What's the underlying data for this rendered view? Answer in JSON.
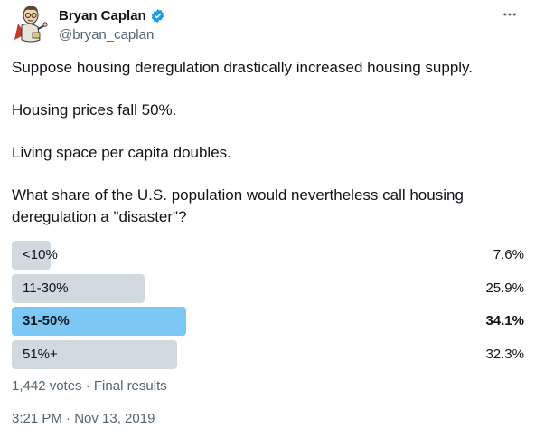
{
  "author": {
    "name": "Bryan Caplan",
    "handle": "@bryan_caplan",
    "verified": true,
    "avatar_icon": "cartoon-avatar-icon"
  },
  "menu_icon": "more-horizontal-icon",
  "tweet": {
    "paragraphs": [
      "Suppose housing deregulation drastically increased housing supply.",
      "Housing prices fall 50%.",
      "Living space per capita doubles.",
      "What share of the U.S. population would nevertheless call housing deregulation a \"disaster\"?"
    ]
  },
  "poll": {
    "options": [
      {
        "label": "<10%",
        "percent_text": "7.6%",
        "percent": 7.6,
        "winner": false
      },
      {
        "label": "11-30%",
        "percent_text": "25.9%",
        "percent": 25.9,
        "winner": false
      },
      {
        "label": "31-50%",
        "percent_text": "34.1%",
        "percent": 34.1,
        "winner": true
      },
      {
        "label": "51%+",
        "percent_text": "32.3%",
        "percent": 32.3,
        "winner": false
      }
    ],
    "summary": "1,442 votes · Final results"
  },
  "timestamp": "3:21 PM · Nov 13, 2019",
  "colors": {
    "bar": "#cfd9de",
    "winner_bar": "#7dc7f5",
    "verified_badge": "#1d9bf0",
    "secondary_text": "#536471"
  }
}
